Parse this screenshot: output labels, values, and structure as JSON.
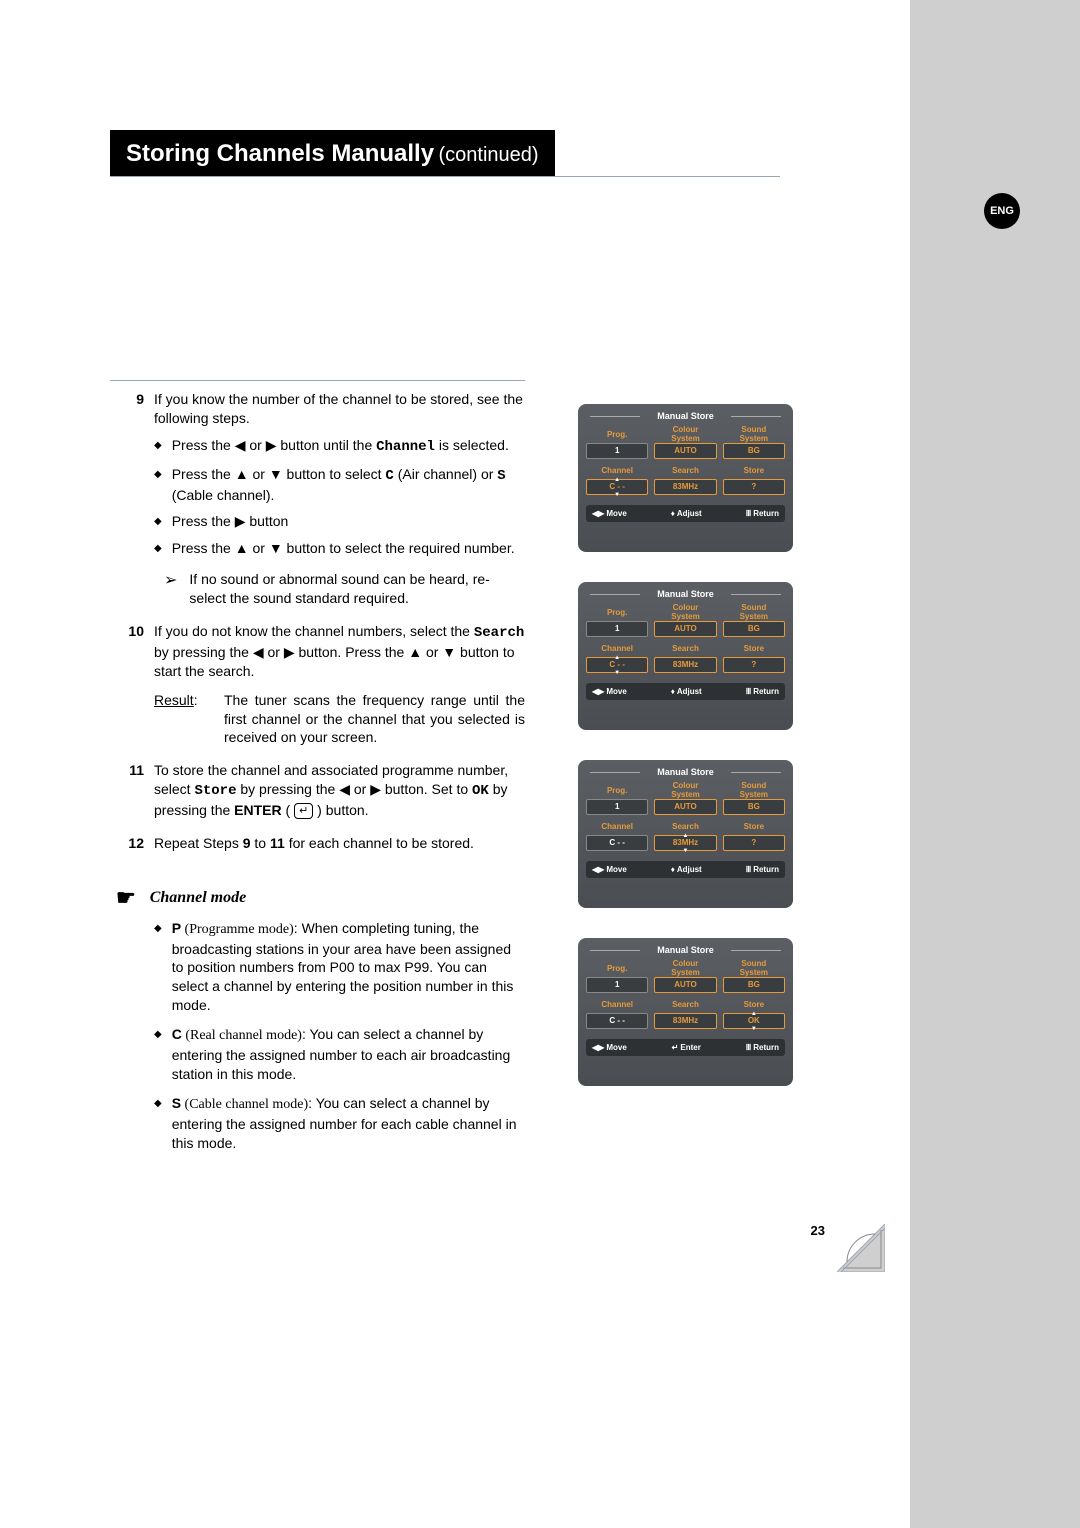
{
  "lang_badge": "ENG",
  "title": {
    "main": "Storing Channels Manually",
    "sub": "(continued)"
  },
  "steps": {
    "s9": {
      "num": "9",
      "intro": "If you know the number of the channel to be stored, see the following steps.",
      "b1_a": "Press the ◀ or ▶ button until the ",
      "b1_mono": "Channel",
      "b1_b": " is selected.",
      "b2_a": "Press the ▲ or ▼ button to select ",
      "b2_mono1": "C",
      "b2_mid": " (Air channel) or ",
      "b2_mono2": "S",
      "b2_b": " (Cable channel).",
      "b3": "Press the ▶ button",
      "b4": "Press the ▲ or ▼ button to select the required number.",
      "note_arrow": "➢",
      "note": "If no sound or abnormal sound can be heard, re-select the sound standard required."
    },
    "s10": {
      "num": "10",
      "a": "If you do not know the channel numbers, select the ",
      "mono": "Search",
      "b": " by pressing the ◀ or ▶ button. Press the ▲ or ▼ button to start the search.",
      "result_lbl": "Result",
      "result_txt": "The tuner scans the frequency range until the first channel or the channel that you selected is received on your screen."
    },
    "s11": {
      "num": "11",
      "a": "To store the channel and associated programme number, select ",
      "mono1": "Store",
      "b": " by pressing the ◀ or ▶ button. Set to ",
      "mono2": "OK",
      "c": " by pressing the ",
      "enter": "ENTER",
      "d": " button."
    },
    "s12": {
      "num": "12",
      "a": "Repeat Steps ",
      "b": "9",
      "c": " to ",
      "d": "11",
      "e": " for each channel to be stored."
    }
  },
  "channel_mode": {
    "title": "Channel mode",
    "p_lbl": "P",
    "p_ital": " (Programme mode)",
    "p_txt": ": When completing tuning, the broadcasting stations in your area have been assigned to position numbers from P00 to max P99. You can select a channel by entering the position number in this mode.",
    "c_lbl": "C",
    "c_ital": " (Real channel mode)",
    "c_txt": ": You can select a channel by entering the assigned number to each air broadcasting station in this mode.",
    "s_lbl": "S",
    "s_ital": " (Cable channel mode)",
    "s_txt": ": You can select a channel by entering the assigned number for each cable channel in this mode."
  },
  "menu": {
    "title": "Manual Store",
    "headers": {
      "prog": "Prog.",
      "colour": "Colour\nSystem",
      "sound": "Sound\nSystem",
      "channel": "Channel",
      "search": "Search",
      "store": "Store"
    },
    "values": {
      "prog": "1",
      "colour": "AUTO",
      "sound": "BG",
      "channel": "C - -",
      "search": "83MHz",
      "store_q": "?",
      "store_ok": "OK"
    },
    "help": {
      "move": "Move",
      "adjust": "Adjust",
      "enter": "Enter",
      "return": "Return",
      "move_sym": "◀▶",
      "adjust_sym": "♦",
      "enter_sym": "↵",
      "return_sym": "Ⅲ"
    }
  },
  "page_number": "23"
}
